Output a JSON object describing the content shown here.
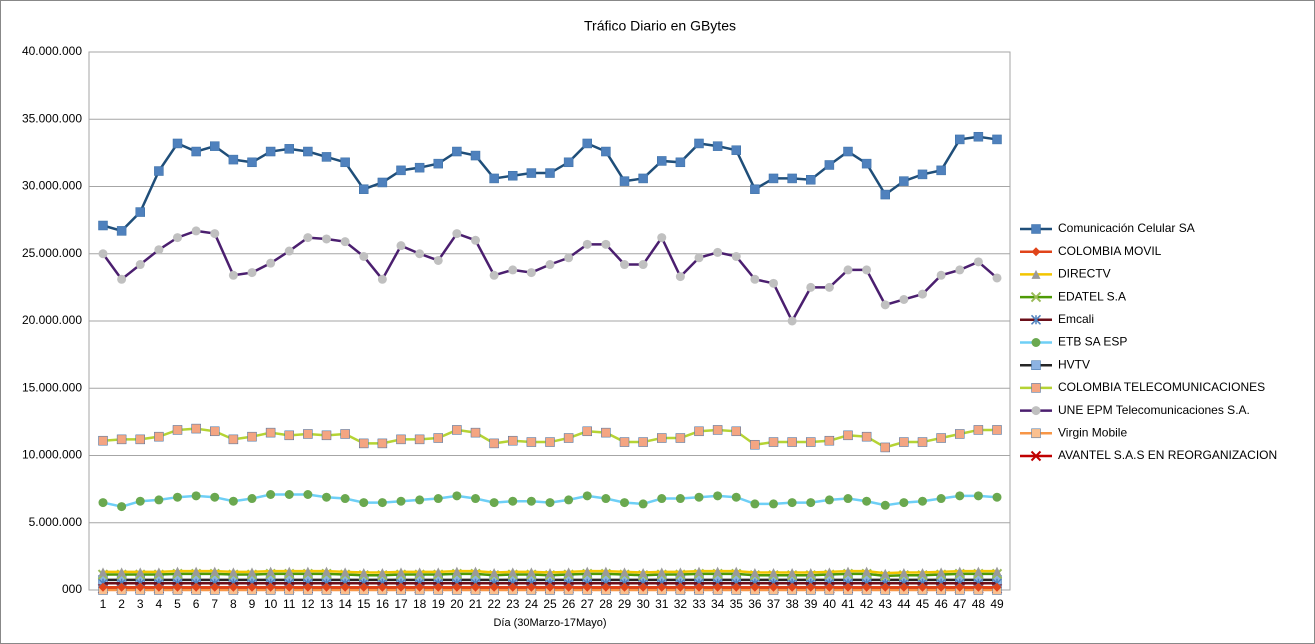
{
  "chart_data": {
    "type": "line",
    "title": "Tráfico Diario en GBytes",
    "x_label": "Día (30Marzo-17Mayo)",
    "categories": [
      "1",
      "2",
      "3",
      "4",
      "5",
      "6",
      "7",
      "8",
      "9",
      "10",
      "11",
      "12",
      "13",
      "14",
      "15",
      "16",
      "17",
      "18",
      "19",
      "20",
      "21",
      "22",
      "23",
      "24",
      "25",
      "26",
      "27",
      "28",
      "29",
      "30",
      "31",
      "32",
      "33",
      "34",
      "35",
      "36",
      "37",
      "38",
      "39",
      "40",
      "41",
      "42",
      "43",
      "44",
      "45",
      "46",
      "47",
      "48",
      "49"
    ],
    "ylim": [
      0,
      40000000
    ],
    "yticks": [
      {
        "value": 0,
        "label": "000"
      },
      {
        "value": 5000000,
        "label": "5.000.000"
      },
      {
        "value": 10000000,
        "label": "10.000.000"
      },
      {
        "value": 15000000,
        "label": "15.000.000"
      },
      {
        "value": 20000000,
        "label": "20.000.000"
      },
      {
        "value": 25000000,
        "label": "25.000.000"
      },
      {
        "value": 30000000,
        "label": "30.000.000"
      },
      {
        "value": 35000000,
        "label": "35.000.000"
      },
      {
        "value": 40000000,
        "label": "40.000.000"
      }
    ],
    "grid": true,
    "legend": "right",
    "series": [
      {
        "name": "Comunicación Celular SA",
        "color": "#1f4e79",
        "marker_color": "#4f81bd",
        "marker": "square",
        "values": [
          27100000,
          26700000,
          28100000,
          31150000,
          33200000,
          32600000,
          33000000,
          32000000,
          31800000,
          32600000,
          32800000,
          32600000,
          32200000,
          31800000,
          29800000,
          30300000,
          31200000,
          31400000,
          31700000,
          32600000,
          32300000,
          30600000,
          30800000,
          31000000,
          31000000,
          31800000,
          33200000,
          32600000,
          30400000,
          30600000,
          31900000,
          31800000,
          33200000,
          33000000,
          32700000,
          29800000,
          30600000,
          30600000,
          30500000,
          31600000,
          32600000,
          31700000,
          29400000,
          30400000,
          30900000,
          31200000,
          33500000,
          33700000,
          33500000
        ]
      },
      {
        "name": "COLOMBIA  MOVIL",
        "color": "#e0441a",
        "marker_color": "#e0441a",
        "marker": "diamond",
        "values": [
          200000,
          200000,
          200000,
          200000,
          200000,
          200000,
          200000,
          200000,
          200000,
          200000,
          200000,
          200000,
          200000,
          200000,
          200000,
          200000,
          200000,
          200000,
          200000,
          200000,
          200000,
          200000,
          200000,
          200000,
          200000,
          200000,
          200000,
          200000,
          200000,
          200000,
          200000,
          200000,
          200000,
          200000,
          200000,
          200000,
          200000,
          200000,
          200000,
          200000,
          200000,
          200000,
          200000,
          200000,
          200000,
          200000,
          200000,
          200000,
          200000
        ]
      },
      {
        "name": "DIRECTV",
        "color": "#f2c500",
        "marker_color": "#9a9a9a",
        "marker": "triangle",
        "values": [
          1350000,
          1350000,
          1350000,
          1350000,
          1400000,
          1400000,
          1400000,
          1350000,
          1350000,
          1400000,
          1400000,
          1400000,
          1400000,
          1350000,
          1300000,
          1300000,
          1350000,
          1350000,
          1350000,
          1400000,
          1400000,
          1300000,
          1350000,
          1350000,
          1300000,
          1350000,
          1400000,
          1400000,
          1350000,
          1300000,
          1350000,
          1350000,
          1400000,
          1400000,
          1400000,
          1300000,
          1300000,
          1300000,
          1300000,
          1350000,
          1400000,
          1400000,
          1250000,
          1300000,
          1300000,
          1350000,
          1400000,
          1400000,
          1400000
        ]
      },
      {
        "name": "EDATEL S.A",
        "color": "#4e9a06",
        "marker_color": "#9bbb59",
        "marker": "x",
        "values": [
          1150000,
          1150000,
          1150000,
          1150000,
          1200000,
          1200000,
          1200000,
          1150000,
          1150000,
          1200000,
          1200000,
          1200000,
          1200000,
          1150000,
          1100000,
          1100000,
          1150000,
          1150000,
          1150000,
          1200000,
          1200000,
          1100000,
          1150000,
          1150000,
          1100000,
          1150000,
          1200000,
          1200000,
          1150000,
          1100000,
          1150000,
          1150000,
          1200000,
          1200000,
          1200000,
          1100000,
          1100000,
          1100000,
          1100000,
          1150000,
          1200000,
          1200000,
          1050000,
          1100000,
          1100000,
          1150000,
          1200000,
          1200000,
          1200000
        ]
      },
      {
        "name": "Emcali",
        "color": "#6b0f1a",
        "marker_color": "#4f81bd",
        "marker": "star",
        "values": [
          500000,
          500000,
          500000,
          500000,
          500000,
          500000,
          500000,
          500000,
          500000,
          500000,
          500000,
          500000,
          500000,
          500000,
          500000,
          500000,
          500000,
          500000,
          500000,
          500000,
          500000,
          500000,
          500000,
          500000,
          500000,
          500000,
          500000,
          500000,
          500000,
          500000,
          500000,
          500000,
          500000,
          500000,
          500000,
          500000,
          500000,
          500000,
          500000,
          500000,
          500000,
          500000,
          500000,
          500000,
          500000,
          500000,
          500000,
          500000,
          500000
        ]
      },
      {
        "name": "ETB SA ESP",
        "color": "#6ecff6",
        "marker_color": "#6aa84f",
        "marker": "circle",
        "values": [
          6500000,
          6200000,
          6600000,
          6700000,
          6900000,
          7000000,
          6900000,
          6600000,
          6800000,
          7100000,
          7100000,
          7100000,
          6900000,
          6800000,
          6500000,
          6500000,
          6600000,
          6700000,
          6800000,
          7000000,
          6800000,
          6500000,
          6600000,
          6600000,
          6500000,
          6700000,
          7000000,
          6800000,
          6500000,
          6400000,
          6800000,
          6800000,
          6900000,
          7000000,
          6900000,
          6400000,
          6400000,
          6500000,
          6500000,
          6700000,
          6800000,
          6600000,
          6300000,
          6500000,
          6600000,
          6800000,
          7000000,
          7000000,
          6900000
        ]
      },
      {
        "name": "HVTV",
        "color": "#262626",
        "marker_color": "#8db3e2",
        "marker": "square",
        "values": [
          750000,
          750000,
          750000,
          750000,
          750000,
          750000,
          750000,
          750000,
          750000,
          750000,
          750000,
          750000,
          750000,
          750000,
          750000,
          750000,
          750000,
          750000,
          750000,
          750000,
          750000,
          750000,
          750000,
          750000,
          750000,
          750000,
          750000,
          750000,
          750000,
          750000,
          750000,
          750000,
          750000,
          750000,
          750000,
          750000,
          750000,
          750000,
          750000,
          750000,
          750000,
          750000,
          750000,
          750000,
          750000,
          750000,
          750000,
          750000,
          750000
        ]
      },
      {
        "name": "COLOMBIA  TELECOMUNICACIONES",
        "color": "#b5d334",
        "marker_color": "#f4a582",
        "marker": "square",
        "values": [
          11100000,
          11200000,
          11200000,
          11400000,
          11900000,
          12000000,
          11800000,
          11200000,
          11400000,
          11700000,
          11500000,
          11600000,
          11500000,
          11600000,
          10900000,
          10900000,
          11200000,
          11200000,
          11300000,
          11900000,
          11700000,
          10900000,
          11100000,
          11000000,
          11000000,
          11300000,
          11800000,
          11700000,
          11000000,
          11000000,
          11300000,
          11300000,
          11800000,
          11900000,
          11800000,
          10800000,
          11000000,
          11000000,
          11000000,
          11100000,
          11500000,
          11400000,
          10600000,
          11000000,
          11000000,
          11300000,
          11600000,
          11900000,
          11900000
        ]
      },
      {
        "name": "UNE EPM Telecomunicaciones  S.A.",
        "color": "#4b1f6f",
        "marker_color": "#c0c0c0",
        "marker": "circle",
        "values": [
          25000000,
          23100000,
          24200000,
          25300000,
          26200000,
          26700000,
          26500000,
          23400000,
          23600000,
          24300000,
          25200000,
          26200000,
          26100000,
          25900000,
          24800000,
          23100000,
          25600000,
          25000000,
          24500000,
          26500000,
          26000000,
          23400000,
          23800000,
          23600000,
          24200000,
          24700000,
          25700000,
          25700000,
          24200000,
          24200000,
          26200000,
          23300000,
          24700000,
          25100000,
          24800000,
          23100000,
          22800000,
          20000000,
          22500000,
          22500000,
          23800000,
          23800000,
          21200000,
          21600000,
          22000000,
          23400000,
          23800000,
          24400000,
          23200000
        ]
      },
      {
        "name": "Virgin Mobile",
        "color": "#f79646",
        "marker_color": "#fac08f",
        "marker": "square",
        "values": [
          0,
          0,
          0,
          0,
          0,
          0,
          0,
          0,
          0,
          0,
          0,
          0,
          0,
          0,
          0,
          0,
          0,
          0,
          0,
          0,
          0,
          0,
          0,
          0,
          0,
          0,
          0,
          0,
          0,
          0,
          0,
          0,
          0,
          0,
          0,
          0,
          0,
          0,
          0,
          0,
          0,
          0,
          0,
          0,
          0,
          0,
          0,
          0,
          0
        ]
      },
      {
        "name": "AVANTEL S.A.S EN REORGANIZACION",
        "color": "#c00000",
        "marker_color": "#c00000",
        "marker": "x",
        "values": [
          100000,
          100000,
          100000,
          100000,
          100000,
          100000,
          100000,
          100000,
          100000,
          100000,
          100000,
          100000,
          100000,
          100000,
          100000,
          100000,
          100000,
          100000,
          100000,
          100000,
          100000,
          100000,
          100000,
          100000,
          100000,
          100000,
          100000,
          100000,
          100000,
          100000,
          100000,
          100000,
          100000,
          100000,
          100000,
          100000,
          100000,
          100000,
          100000,
          100000,
          100000,
          100000,
          100000,
          100000,
          100000,
          100000,
          100000,
          100000,
          100000
        ]
      }
    ]
  }
}
